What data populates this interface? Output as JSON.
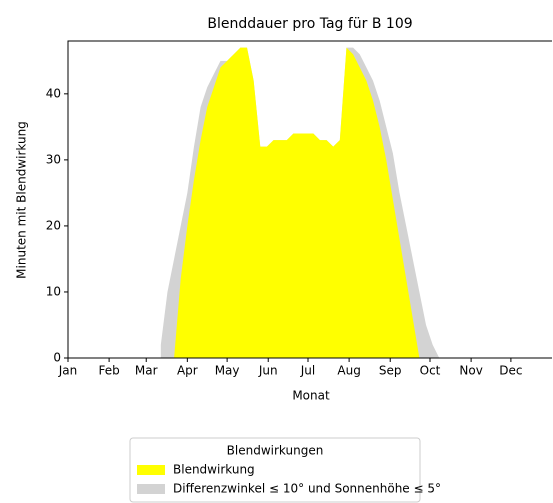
{
  "chart_data": {
    "type": "area",
    "title": "Blenddauer pro Tag für B 109",
    "xlabel": "Monat",
    "ylabel": "Minuten mit Blendwirkung",
    "x": [
      70,
      75,
      80,
      85,
      90,
      95,
      100,
      105,
      110,
      115,
      120,
      125,
      130,
      135,
      140,
      145,
      150,
      155,
      160,
      165,
      170,
      175,
      180,
      185,
      190,
      195,
      200,
      205,
      210,
      215,
      220,
      225,
      230,
      235,
      240,
      245,
      250,
      255,
      260,
      265,
      270,
      275,
      280
    ],
    "series": [
      {
        "name": "Differenzwinkel ≤ 10° und Sonnenhöhe ≤ 5°",
        "color": "#d3d3d3",
        "values": [
          2,
          10,
          15,
          20,
          25,
          32,
          38,
          41,
          43,
          45,
          45,
          46,
          47,
          47,
          42,
          32,
          32,
          33,
          33,
          33,
          34,
          34,
          34,
          34,
          33,
          33,
          32,
          33,
          47,
          47,
          46,
          44,
          42,
          39,
          35,
          31,
          25,
          20,
          15,
          10,
          5,
          2,
          0
        ]
      },
      {
        "name": "Blendwirkung",
        "color": "#ffff00",
        "values": [
          0,
          0,
          0,
          12,
          20,
          27,
          33,
          38,
          41,
          44,
          45,
          46,
          47,
          47,
          42,
          32,
          32,
          33,
          33,
          33,
          34,
          34,
          34,
          34,
          33,
          33,
          32,
          33,
          47,
          46,
          44,
          42,
          39,
          35,
          30,
          24,
          18,
          12,
          6,
          0,
          0,
          0,
          0
        ]
      }
    ],
    "xlim": [
      0,
      365
    ],
    "xticks": [
      {
        "value": 0,
        "label": "Jan"
      },
      {
        "value": 31,
        "label": "Feb"
      },
      {
        "value": 59,
        "label": "Mar"
      },
      {
        "value": 90,
        "label": "Apr"
      },
      {
        "value": 120,
        "label": "May"
      },
      {
        "value": 151,
        "label": "Jun"
      },
      {
        "value": 181,
        "label": "Jul"
      },
      {
        "value": 212,
        "label": "Aug"
      },
      {
        "value": 243,
        "label": "Sep"
      },
      {
        "value": 273,
        "label": "Oct"
      },
      {
        "value": 304,
        "label": "Nov"
      },
      {
        "value": 334,
        "label": "Dec"
      }
    ],
    "ylim": [
      0,
      48
    ],
    "yticks": [
      0,
      10,
      20,
      30,
      40
    ],
    "legend_title": "Blendwirkungen",
    "legend": "below"
  }
}
